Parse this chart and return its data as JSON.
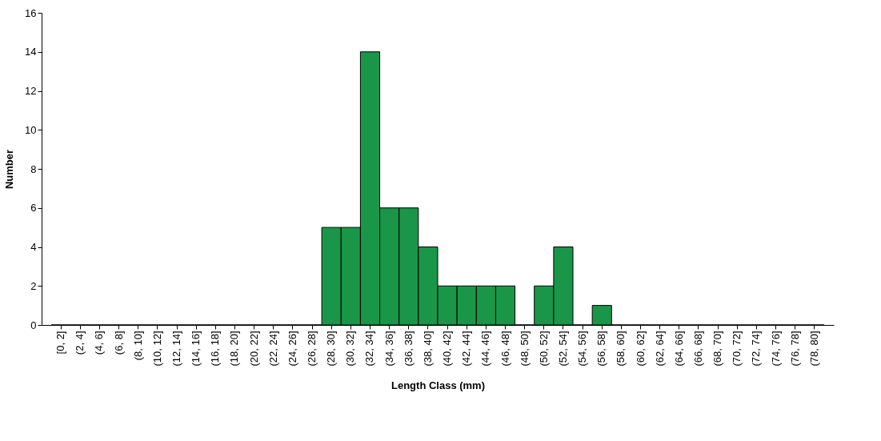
{
  "chart_data": {
    "type": "bar",
    "xlabel": "Length Class (mm)",
    "ylabel": "Number",
    "categories": [
      "[0, 2]",
      "(2, 4]",
      "(4, 6]",
      "(6, 8]",
      "(8, 10]",
      "(10, 12]",
      "(12, 14]",
      "(14, 16]",
      "(16, 18]",
      "(18, 20]",
      "(20, 22]",
      "(22, 24]",
      "(24, 26]",
      "(26, 28]",
      "(28, 30]",
      "(30, 32]",
      "(32, 34]",
      "(34, 36]",
      "(36, 38]",
      "(38, 40]",
      "(40, 42]",
      "(42, 44]",
      "(44, 46]",
      "(46, 48]",
      "(48, 50]",
      "(50, 52]",
      "(52, 54]",
      "(54, 56]",
      "(56, 58]",
      "(58, 60]",
      "(60, 62]",
      "(62, 64]",
      "(64, 66]",
      "(66, 68]",
      "(68, 70]",
      "(70, 72]",
      "(72, 74]",
      "(74, 76]",
      "(76, 78]",
      "(78, 80]"
    ],
    "values": [
      0,
      0,
      0,
      0,
      0,
      0,
      0,
      0,
      0,
      0,
      0,
      0,
      0,
      0,
      5,
      5,
      14,
      6,
      6,
      4,
      2,
      2,
      2,
      2,
      0,
      2,
      4,
      0,
      1,
      0,
      0,
      0,
      0,
      0,
      0,
      0,
      0,
      0,
      0,
      0
    ],
    "color": "#1a9648",
    "ylim": [
      0,
      16
    ],
    "yticks": [
      0,
      2,
      4,
      6,
      8,
      10,
      12,
      14,
      16
    ],
    "grid": false
  }
}
